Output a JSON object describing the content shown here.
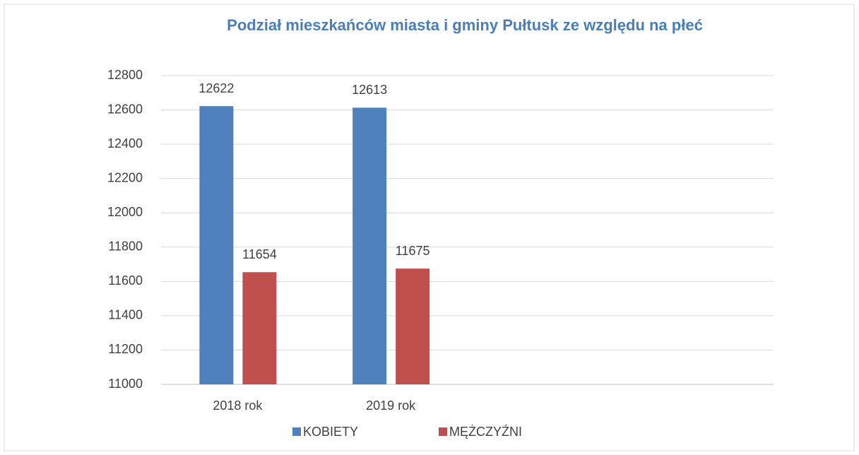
{
  "chart_data": {
    "type": "bar",
    "title": "Podział mieszkańców miasta i gminy Pułtusk ze względu na płeć",
    "categories": [
      "2018 rok",
      "2019 rok",
      null,
      null
    ],
    "series": [
      {
        "name": "KOBIETY",
        "color": "#4f81bd",
        "values": [
          12622,
          12613,
          null,
          null
        ]
      },
      {
        "name": "MĘŻCZYŹNI",
        "color": "#c0504d",
        "values": [
          11654,
          11675,
          null,
          null
        ]
      }
    ],
    "ylim": [
      11000,
      12800
    ],
    "yticks": [
      11000,
      11200,
      11400,
      11600,
      11800,
      12000,
      12200,
      12400,
      12600,
      12800
    ],
    "grid": true,
    "legend": "bottom"
  }
}
